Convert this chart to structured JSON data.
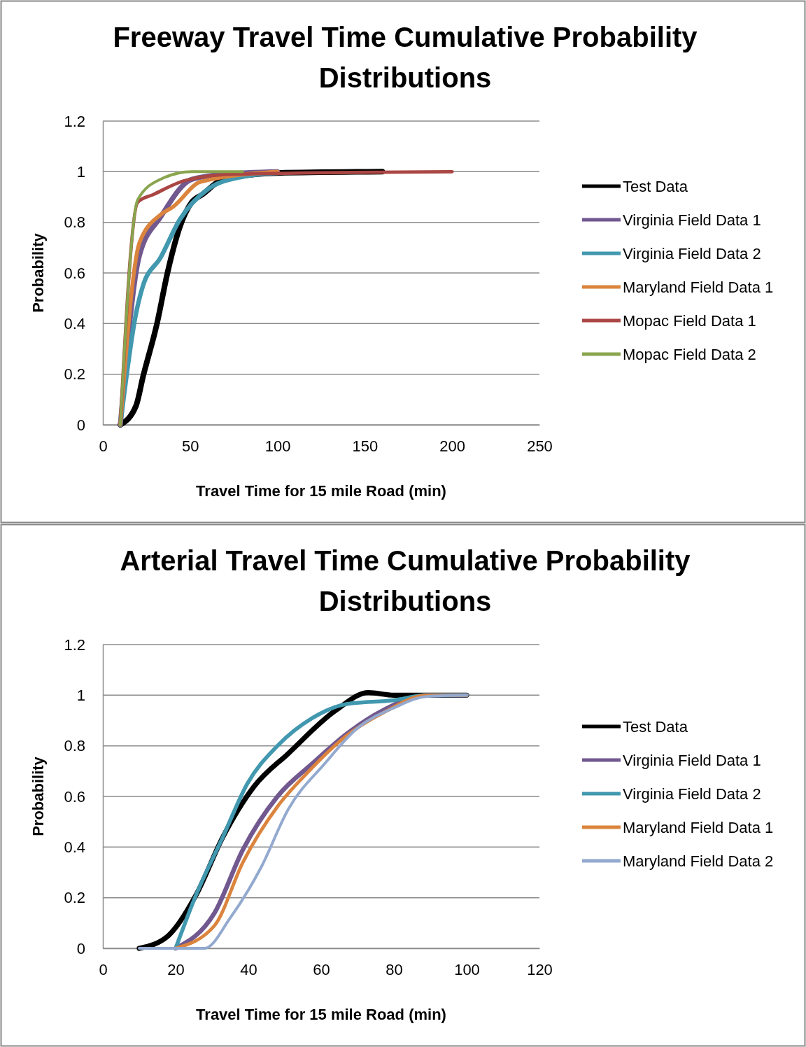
{
  "chart_data": [
    {
      "type": "line",
      "title": "Freeway Travel Time Cumulative Probability Distributions",
      "xlabel": "Travel Time for 15 mile Road (min)",
      "ylabel": "Probability",
      "xlim": [
        0,
        250
      ],
      "xticks": [
        0,
        50,
        100,
        150,
        200,
        250
      ],
      "ylim": [
        0,
        1.2
      ],
      "yticks": [
        0,
        0.2,
        0.4,
        0.6,
        0.8,
        1,
        1.2
      ],
      "grid": "y",
      "legend": "right",
      "marker": "none",
      "line_style": "solid",
      "series": [
        {
          "name": "Test Data",
          "color": "#000000",
          "x": [
            10,
            19,
            23,
            31,
            37,
            44,
            51,
            57,
            69,
            100,
            160
          ],
          "values": [
            0,
            0.075,
            0.19,
            0.4,
            0.6,
            0.78,
            0.88,
            0.91,
            0.97,
            0.995,
            1
          ]
        },
        {
          "name": "Virginia Field Data 1",
          "color": "#71588f",
          "x": [
            10,
            21,
            33,
            51,
            70,
            100
          ],
          "values": [
            0,
            0.67,
            0.82,
            0.97,
            0.99,
            1
          ]
        },
        {
          "name": "Virginia Field Data 2",
          "color": "#4198af",
          "x": [
            10,
            19,
            23,
            33,
            44,
            60,
            80,
            100
          ],
          "values": [
            0,
            0.44,
            0.55,
            0.66,
            0.81,
            0.93,
            0.98,
            0.995
          ]
        },
        {
          "name": "Maryland Field Data 1",
          "color": "#db843d",
          "x": [
            10,
            21,
            33,
            40,
            56,
            100
          ],
          "values": [
            0,
            0.72,
            0.83,
            0.86,
            0.96,
            1
          ]
        },
        {
          "name": "Mopac Field Data 1",
          "color": "#aa4643",
          "x": [
            10,
            20,
            29,
            47,
            75,
            200
          ],
          "values": [
            0,
            0.88,
            0.91,
            0.965,
            0.99,
            1
          ]
        },
        {
          "name": "Mopac Field Data 2",
          "color": "#89a54e",
          "x": [
            10,
            20,
            33,
            51,
            80
          ],
          "values": [
            0,
            0.89,
            0.97,
            1,
            1
          ]
        }
      ]
    },
    {
      "type": "line",
      "title": "Arterial Travel Time Cumulative Probability Distributions",
      "xlabel": "Travel Time for 15 mile Road (min)",
      "ylabel": "Probability",
      "xlim": [
        0,
        120
      ],
      "xticks": [
        0,
        20,
        40,
        60,
        80,
        100,
        120
      ],
      "ylim": [
        0,
        1.2
      ],
      "yticks": [
        0,
        0.2,
        0.4,
        0.6,
        0.8,
        1,
        1.2
      ],
      "grid": "y",
      "legend": "right",
      "marker": "none",
      "line_style": "solid",
      "series": [
        {
          "name": "Test Data",
          "color": "#000000",
          "x": [
            10,
            18,
            25.6,
            33,
            41.6,
            51,
            64,
            73,
            80,
            100
          ],
          "values": [
            0,
            0.05,
            0.21,
            0.44,
            0.64,
            0.77,
            0.94,
            1.01,
            1,
            1
          ]
        },
        {
          "name": "Virginia Field Data 1",
          "color": "#71588f",
          "x": [
            20,
            30.7,
            38.5,
            48,
            57.6,
            67.3,
            77,
            89,
            100
          ],
          "values": [
            0,
            0.14,
            0.39,
            0.6,
            0.73,
            0.85,
            0.94,
            1,
            1
          ]
        },
        {
          "name": "Virginia Field Data 2",
          "color": "#4198af",
          "x": [
            20,
            25.6,
            33,
            39.7,
            48,
            57.6,
            67,
            80,
            89,
            100
          ],
          "values": [
            0,
            0.21,
            0.44,
            0.65,
            0.8,
            0.91,
            0.965,
            0.98,
            1,
            1
          ]
        },
        {
          "name": "Maryland Field Data 1",
          "color": "#db843d",
          "x": [
            20,
            30.7,
            38.5,
            48,
            56,
            67,
            77,
            89,
            100
          ],
          "values": [
            0,
            0.09,
            0.34,
            0.56,
            0.69,
            0.84,
            0.93,
            1,
            1
          ]
        },
        {
          "name": "Maryland Field Data 2",
          "color": "#93a9cf",
          "x": [
            10,
            28,
            35,
            43.5,
            51,
            61,
            70,
            80,
            89,
            100
          ],
          "values": [
            0,
            0,
            0.12,
            0.32,
            0.55,
            0.73,
            0.87,
            0.95,
            0.995,
            1
          ]
        }
      ]
    }
  ]
}
